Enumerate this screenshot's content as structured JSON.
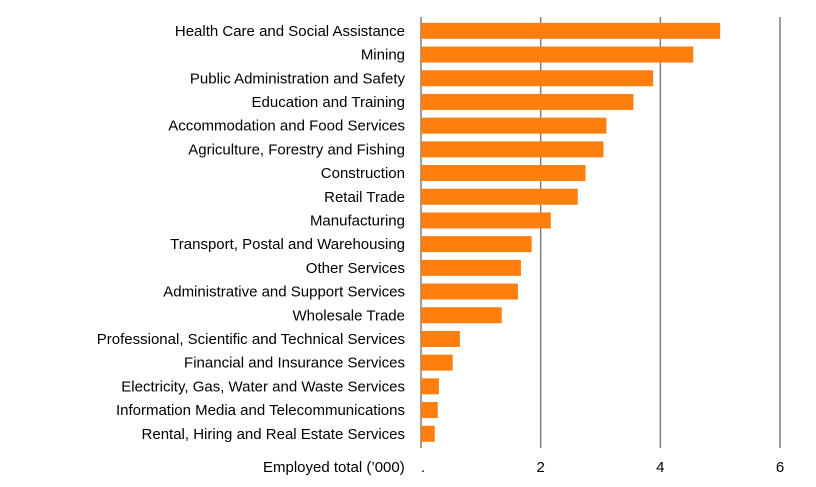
{
  "chart_data": {
    "type": "bar",
    "orientation": "horizontal",
    "xlabel": "Employed total (’000)",
    "xlim": [
      0,
      6
    ],
    "xticks": [
      2,
      4,
      6
    ],
    "zero_tick_label": ".",
    "grid": true,
    "bar_color": "#FF7F0E",
    "categories": [
      "Health Care and Social Assistance",
      "Mining",
      "Public Administration and Safety",
      "Education and Training",
      "Accommodation and Food Services",
      "Agriculture, Forestry and Fishing",
      "Construction",
      "Retail Trade",
      "Manufacturing",
      "Transport, Postal and Warehousing",
      "Other Services",
      "Administrative and Support Services",
      "Wholesale Trade",
      "Professional, Scientific and Technical Services",
      "Financial and Insurance Services",
      "Electricity, Gas, Water and Waste Services",
      "Information Media and Telecommunications",
      "Rental, Hiring and Real Estate Services"
    ],
    "values": [
      5.0,
      4.55,
      3.88,
      3.55,
      3.1,
      3.05,
      2.75,
      2.62,
      2.17,
      1.85,
      1.67,
      1.62,
      1.35,
      0.65,
      0.53,
      0.3,
      0.28,
      0.23
    ]
  }
}
